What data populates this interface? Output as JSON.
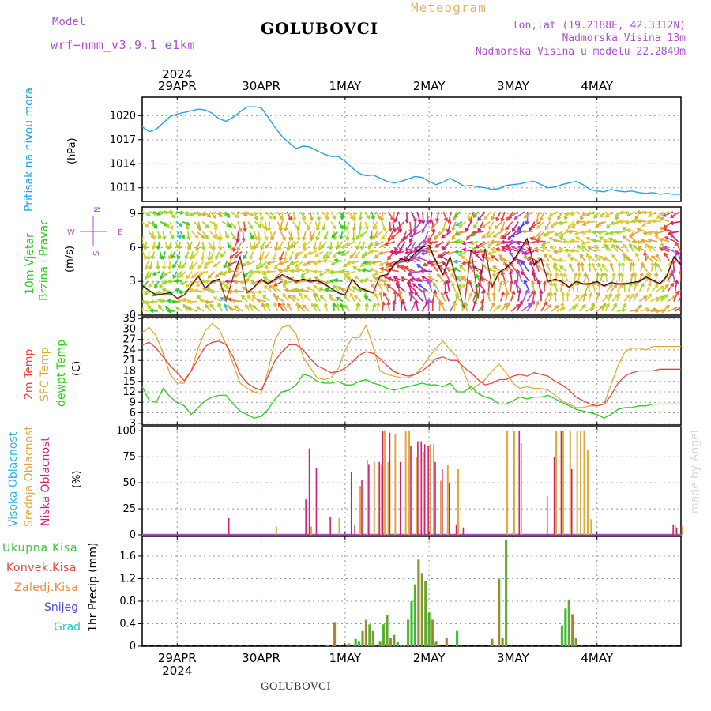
{
  "header": {
    "model_label": "Model",
    "model_name": "wrf−nmm_v3.9.1  e1km",
    "station": "GOLUBOVCI",
    "meteogram": "Meteogram",
    "coords": "lon,lat (19.2188E, 42.3312N)",
    "altitude": "Nadmorska Visina 13m",
    "model_altitude": "Nadmorska Visina u modelu 22.2849m",
    "footer_station": "GOLUBOVCI",
    "watermark": "made by Angel"
  },
  "time_axis": {
    "year": "2024",
    "days": [
      "29APR",
      "30APR",
      "1MAY",
      "2MAY",
      "3MAY",
      "4MAY"
    ],
    "start_hour": 0,
    "end_hour": 144
  },
  "panel_labels": {
    "pressure": [
      "Pritisak na nivou mora",
      "(hPa)"
    ],
    "wind": [
      "10m Vjetar",
      "Brzina i Pravac",
      "(m/s)"
    ],
    "compass": [
      "N",
      "E",
      "S",
      "W"
    ],
    "temp": [
      "2m Temp",
      "SFC Temp",
      "dewpt Temp",
      "(C)"
    ],
    "cloud": [
      "Visoka Oblacnost",
      "Srednja Oblacnost",
      "Niska Oblacnost",
      "(%)"
    ],
    "precip_axis": "1hr Precip (mm)",
    "precip_legend": [
      "Ukupna Kisa",
      "Konvek.Kisa",
      "Zaledj.Kisa",
      "Snijeg",
      "Grad"
    ]
  },
  "colors": {
    "pressure": "#1fa3e8",
    "temp2m": "#e8453c",
    "sfc": "#e0a83a",
    "dew": "#2ecc1f",
    "high": "#29b6e0",
    "mid": "#e0a83a",
    "low": "#d0207a",
    "total": "#3cc83c",
    "conv": "#e8453c",
    "freeze": "#ef8a3c",
    "snow": "#4a4ae0",
    "hail": "#20c8c8",
    "violet": "#b04fd0",
    "title_orange": "#e8b060"
  },
  "chart_data": [
    {
      "type": "line",
      "title": "Pritisak na nivou mora",
      "ylabel": "(hPa)",
      "yticks": [
        1011,
        1014,
        1017,
        1020
      ],
      "ylim": [
        1009.3,
        1022.3
      ],
      "x": [
        -10,
        -8,
        -6,
        -4,
        -2,
        0,
        2,
        4,
        6,
        8,
        10,
        12,
        14,
        16,
        18,
        20,
        22,
        24,
        26,
        28,
        30,
        32,
        34,
        36,
        38,
        40,
        42,
        44,
        46,
        48,
        50,
        52,
        54,
        56,
        58,
        60,
        62,
        64,
        66,
        68,
        70,
        72,
        74,
        76,
        78,
        80,
        82,
        84,
        86,
        88,
        90,
        92,
        94,
        96,
        98,
        100,
        102,
        104,
        106,
        108,
        110,
        112,
        114,
        116,
        118,
        120,
        122,
        124,
        126,
        128,
        130,
        132,
        134,
        136,
        138,
        140,
        142,
        144
      ],
      "series": [
        {
          "values": [
            1018.6,
            1018.0,
            1018.3,
            1019.1,
            1019.9,
            1020.2,
            1020.4,
            1020.6,
            1020.8,
            1020.7,
            1020.3,
            1019.6,
            1019.3,
            1019.8,
            1020.5,
            1021.1,
            1021.1,
            1021.0,
            1019.8,
            1018.5,
            1017.4,
            1016.6,
            1015.9,
            1016.2,
            1016.1,
            1015.6,
            1015.2,
            1014.9,
            1014.9,
            1014.3,
            1013.5,
            1012.8,
            1012.5,
            1012.6,
            1012.2,
            1011.8,
            1011.6,
            1011.8,
            1012.1,
            1012.4,
            1012.3,
            1011.8,
            1011.4,
            1011.7,
            1012.2,
            1011.7,
            1011.2,
            1011.3,
            1011.1,
            1011.0,
            1010.8,
            1010.9,
            1011.3,
            1011.4,
            1011.5,
            1011.7,
            1011.8,
            1011.4,
            1011.0,
            1011.1,
            1011.4,
            1011.6,
            1011.8,
            1011.4,
            1010.8,
            1010.6,
            1010.5,
            1010.8,
            1010.6,
            1010.5,
            1010.6,
            1010.4,
            1010.3,
            1010.4,
            1010.2,
            1010.3,
            1010.2,
            1010.2
          ]
        }
      ]
    },
    {
      "type": "line",
      "title": "10m Vjetar Brzina i Pravac",
      "ylabel": "(m/s)",
      "yticks": [
        0,
        3,
        6,
        9
      ],
      "ylim": [
        0,
        9.6
      ],
      "x": [
        -10,
        -6,
        -2,
        0,
        2,
        6,
        8,
        10,
        12,
        14,
        16,
        18,
        20,
        22,
        24,
        26,
        28,
        30,
        32,
        34,
        36,
        38,
        40,
        42,
        44,
        46,
        48,
        50,
        52,
        54,
        56,
        58,
        60,
        62,
        64,
        66,
        68,
        70,
        72,
        74,
        76,
        78,
        80,
        82,
        84,
        86,
        88,
        90,
        92,
        94,
        96,
        98,
        100,
        102,
        104,
        106,
        108,
        110,
        112,
        114,
        116,
        118,
        120,
        122,
        124,
        126,
        128,
        130,
        132,
        134,
        136,
        138,
        140,
        142,
        144
      ],
      "series": [
        {
          "values": [
            2.6,
            1.8,
            2.0,
            1.5,
            1.8,
            3.5,
            2.4,
            3.0,
            3.2,
            1.3,
            3.4,
            5.2,
            2.0,
            2.5,
            3.2,
            2.8,
            3.2,
            3.6,
            3.3,
            3.0,
            3.2,
            3.0,
            3.1,
            2.8,
            2.4,
            2.0,
            1.8,
            3.2,
            2.5,
            2.2,
            2.0,
            3.5,
            3.6,
            4.5,
            5.0,
            4.8,
            5.5,
            6.0,
            6.2,
            4.8,
            3.6,
            5.2,
            2.9,
            0.6,
            5.8,
            1.5,
            5.9,
            2.5,
            3.8,
            4.2,
            4.8,
            5.8,
            6.8,
            4.5,
            5.0,
            3.0,
            3.2,
            3.0,
            2.5,
            3.0,
            2.8,
            2.8,
            3.0,
            2.6,
            2.9,
            2.8,
            2.8,
            2.9,
            3.0,
            3.4,
            3.1,
            2.8,
            3.5,
            5.2,
            4.5
          ]
        }
      ]
    },
    {
      "type": "line",
      "title": "Temperature",
      "ylabel": "(C)",
      "yticks": [
        3,
        6,
        9,
        12,
        15,
        18,
        21,
        24,
        27,
        30,
        33
      ],
      "ylim": [
        2.5,
        33.5
      ],
      "x": [
        -10,
        -8,
        -6,
        -4,
        -2,
        0,
        2,
        4,
        6,
        8,
        10,
        12,
        14,
        16,
        18,
        20,
        22,
        24,
        26,
        28,
        30,
        32,
        34,
        36,
        38,
        40,
        42,
        44,
        46,
        48,
        50,
        52,
        54,
        56,
        58,
        60,
        62,
        64,
        66,
        68,
        70,
        72,
        74,
        76,
        78,
        80,
        82,
        84,
        86,
        88,
        90,
        92,
        94,
        96,
        98,
        100,
        102,
        104,
        106,
        108,
        110,
        112,
        114,
        116,
        118,
        120,
        122,
        124,
        126,
        128,
        130,
        132,
        134,
        136,
        138,
        140,
        142,
        144
      ],
      "series": [
        {
          "name": "2m Temp",
          "values": [
            25.4,
            26.2,
            24.5,
            22.0,
            19.5,
            17.5,
            15.2,
            18.0,
            21.5,
            25.0,
            26.2,
            26.5,
            25.5,
            22.0,
            17.0,
            14.5,
            13.2,
            12.5,
            16.5,
            21.0,
            23.5,
            25.5,
            25.5,
            24.0,
            21.5,
            19.5,
            18.5,
            17.5,
            17.8,
            18.8,
            20.5,
            22.5,
            23.5,
            23.0,
            21.5,
            19.5,
            17.8,
            17.0,
            16.5,
            17.0,
            18.0,
            19.5,
            21.5,
            22.0,
            21.0,
            21.0,
            19.0,
            17.5,
            15.5,
            14.0,
            14.5,
            15.5,
            15.5,
            16.5,
            17.0,
            16.5,
            17.5,
            17.0,
            16.5,
            15.0,
            14.0,
            12.5,
            10.5,
            9.5,
            8.5,
            8.0,
            8.5,
            11.0,
            14.5,
            16.5,
            17.5,
            18.0,
            18.0,
            18.0,
            18.5,
            18.5,
            18.5,
            18.5
          ]
        },
        {
          "name": "SFC Temp",
          "values": [
            29.0,
            30.5,
            28.0,
            23.0,
            17.0,
            14.5,
            14.5,
            18.0,
            24.5,
            29.5,
            31.5,
            30.0,
            25.5,
            20.0,
            14.5,
            13.0,
            12.0,
            11.5,
            18.0,
            27.0,
            30.5,
            31.0,
            28.5,
            22.0,
            19.0,
            16.0,
            15.5,
            16.0,
            18.5,
            24.0,
            27.5,
            27.5,
            31.0,
            25.0,
            18.0,
            17.0,
            16.5,
            16.0,
            16.0,
            17.0,
            19.0,
            22.0,
            24.5,
            26.5,
            24.0,
            22.0,
            17.5,
            12.5,
            14.0,
            15.5,
            18.0,
            20.0,
            17.5,
            14.5,
            13.0,
            13.5,
            13.0,
            13.0,
            12.5,
            11.0,
            9.5,
            8.5,
            7.5,
            7.5,
            8.0,
            8.0,
            8.5,
            14.0,
            19.5,
            23.5,
            24.5,
            24.5,
            24.0,
            25.0,
            25.0,
            25.0,
            25.0,
            25.0
          ]
        },
        {
          "name": "dewpt Temp",
          "values": [
            13.5,
            9.5,
            9.0,
            13.0,
            10.5,
            9.0,
            8.0,
            5.5,
            7.5,
            9.5,
            10.5,
            11.0,
            11.0,
            8.5,
            6.5,
            5.5,
            4.5,
            5.0,
            7.0,
            10.0,
            12.0,
            12.5,
            14.0,
            17.0,
            16.5,
            15.0,
            14.5,
            14.5,
            15.0,
            14.0,
            14.0,
            15.0,
            15.5,
            14.5,
            14.0,
            13.0,
            12.5,
            13.0,
            13.5,
            14.0,
            14.5,
            14.0,
            14.0,
            13.5,
            14.5,
            12.0,
            12.0,
            13.5,
            11.5,
            10.5,
            10.0,
            8.5,
            8.5,
            9.5,
            10.5,
            10.0,
            10.5,
            10.5,
            11.0,
            10.0,
            9.0,
            8.0,
            7.0,
            6.5,
            6.0,
            5.5,
            4.5,
            5.5,
            7.0,
            7.5,
            7.5,
            8.0,
            8.0,
            8.5,
            8.5,
            8.5,
            8.5,
            8.5
          ]
        }
      ]
    },
    {
      "type": "bar",
      "title": "Oblacnost",
      "ylabel": "(%)",
      "yticks": [
        0,
        25,
        50,
        75,
        100
      ],
      "ylim": [
        0,
        104
      ],
      "x": [
        -10,
        -6,
        -2,
        2,
        6,
        10,
        14,
        18,
        22,
        26,
        30,
        34,
        38,
        42,
        46,
        50,
        54,
        58,
        62,
        66,
        70,
        74,
        78,
        82,
        86,
        90,
        94,
        98,
        102,
        106,
        110,
        114,
        118,
        122,
        126,
        130,
        134,
        138,
        142
      ],
      "series": [
        {
          "name": "Visoka Oblacnost",
          "values": [
            0,
            0,
            0,
            0,
            0,
            0,
            0,
            0,
            0,
            0,
            0,
            0,
            0,
            0,
            0,
            0,
            0,
            0,
            0,
            0,
            0,
            0,
            0,
            0,
            0,
            0,
            0,
            0,
            0,
            0,
            0,
            0,
            0,
            0,
            0,
            0,
            0,
            0,
            0
          ]
        },
        {
          "name": "Srednja Oblacnost",
          "values": [
            0,
            0,
            0,
            0,
            0,
            0,
            0,
            0,
            0,
            0,
            0,
            0,
            0,
            0,
            0,
            0,
            0,
            0,
            0,
            0,
            0,
            0,
            0,
            0,
            0,
            0,
            0,
            0,
            0,
            0,
            0,
            0,
            0,
            0,
            0,
            0,
            0,
            0,
            0
          ]
        },
        {
          "name": "Niska Oblacnost",
          "values": [
            0,
            0,
            0,
            0,
            0,
            0,
            0,
            0,
            0,
            0,
            0,
            0,
            0,
            0,
            0,
            0,
            0,
            0,
            0,
            0,
            0,
            0,
            0,
            0,
            0,
            0,
            0,
            0,
            0,
            0,
            0,
            0,
            0,
            0,
            0,
            0,
            0,
            0,
            0
          ]
        }
      ],
      "bars_mid": {
        "x": [
          28,
          38,
          46,
          49,
          52,
          54,
          56,
          58,
          59,
          60,
          62,
          65,
          66,
          68,
          70,
          72,
          73,
          75,
          77,
          80,
          94,
          96,
          98,
          108,
          110,
          112,
          114,
          115,
          116,
          117,
          118,
          142,
          144
        ],
        "values": [
          8,
          8,
          16,
          0,
          47,
          72,
          70,
          68,
          100,
          70,
          97,
          100,
          100,
          75,
          80,
          87,
          87,
          52,
          67,
          63,
          100,
          100,
          88,
          100,
          100,
          100,
          100,
          100,
          100,
          82,
          15,
          10,
          8
        ]
      },
      "bars_low": {
        "x": [
          15,
          37,
          38,
          40,
          44,
          50,
          51,
          53,
          55,
          58,
          59,
          61,
          64,
          67,
          69,
          70,
          71,
          72,
          74,
          76,
          78,
          80,
          82,
          98,
          106,
          108,
          110,
          113,
          142,
          143
        ],
        "values": [
          16,
          34,
          83,
          64,
          17,
          60,
          10,
          53,
          68,
          70,
          100,
          98,
          70,
          85,
          90,
          90,
          87,
          85,
          70,
          63,
          50,
          10,
          7,
          100,
          37,
          75,
          100,
          63,
          10,
          7
        ]
      }
    },
    {
      "type": "bar",
      "title": "1hr Precip",
      "ylabel": "1hr Precip (mm)",
      "yticks": [
        0,
        0.4,
        0.8,
        1.2,
        1.6
      ],
      "ylim": [
        0,
        1.95
      ],
      "x": [
        43,
        45,
        49,
        51,
        52,
        53,
        54,
        55,
        56,
        58,
        59,
        60,
        61,
        62,
        63,
        64,
        65,
        66,
        67,
        68,
        69,
        70,
        71,
        72,
        73,
        74,
        77,
        80,
        90,
        91,
        92,
        93,
        94,
        110,
        111,
        112,
        113,
        114
      ],
      "series": [
        {
          "name": "Ukupna Kisa",
          "values": [
            0.02,
            0.43,
            0.05,
            0.13,
            0.08,
            0.27,
            0.47,
            0.39,
            0.27,
            0.08,
            0.39,
            0.55,
            0.15,
            0.2,
            0.07,
            0.03,
            0.02,
            0.47,
            0.8,
            1.1,
            1.54,
            1.3,
            1.16,
            0.6,
            0.47,
            0.08,
            0.15,
            0.27,
            0.13,
            0.01,
            1.2,
            0.15,
            1.88,
            0.37,
            0.67,
            0.83,
            0.57,
            0.15
          ]
        },
        {
          "name": "Konvek.Kisa",
          "values": [
            0.02,
            0.4,
            0.04,
            0.12,
            0.07,
            0.25,
            0.45,
            0.37,
            0.25,
            0.07,
            0.37,
            0.53,
            0.13,
            0.19,
            0.06,
            0.03,
            0.02,
            0.45,
            0.78,
            1.08,
            1.52,
            1.28,
            1.14,
            0.58,
            0.45,
            0.07,
            0.14,
            0.25,
            0.12,
            0.01,
            1.18,
            0.14,
            1.86,
            0.35,
            0.65,
            0.81,
            0.55,
            0.14
          ]
        }
      ]
    }
  ]
}
